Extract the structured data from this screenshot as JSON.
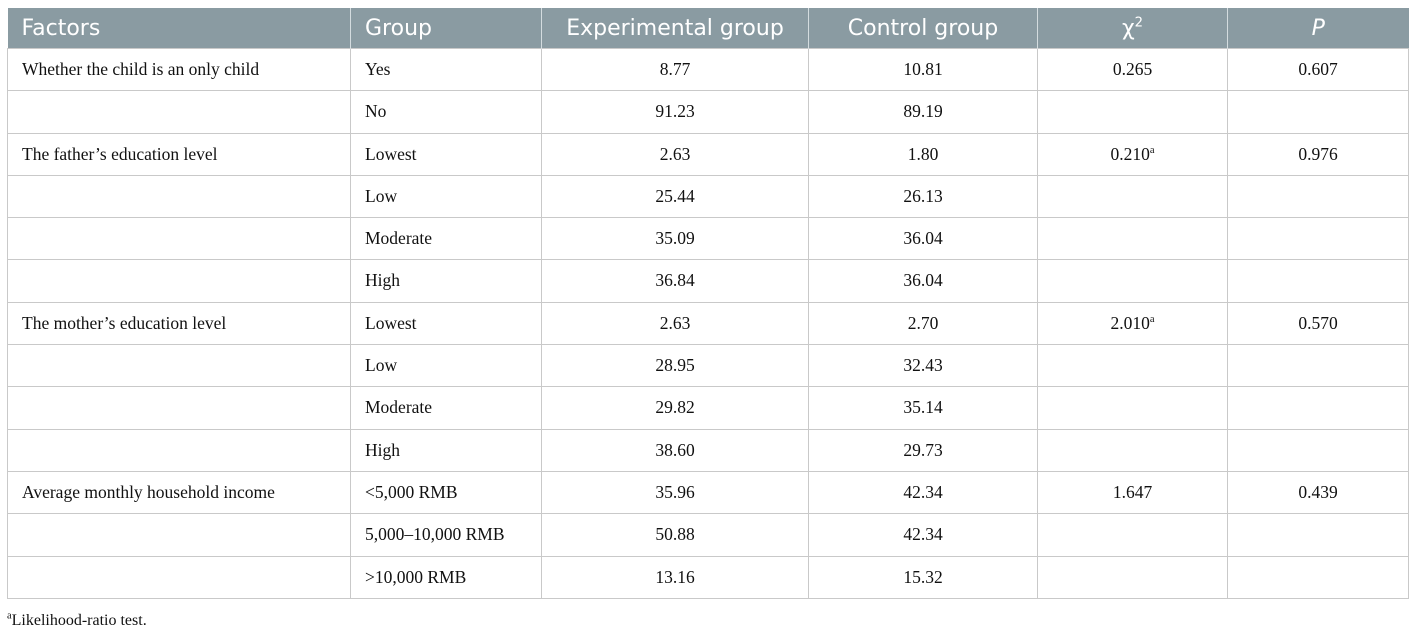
{
  "table": {
    "headers": {
      "factors": "Factors",
      "group": "Group",
      "experimental": "Experimental group",
      "control": "Control group",
      "chi_base": "χ",
      "chi_sup": "2",
      "p": "P"
    },
    "rows": [
      {
        "factor": "Whether the child is an only child",
        "group": "Yes",
        "exp": "8.77",
        "ctrl": "10.81",
        "chi": "0.265",
        "chi_sup": "",
        "p": "0.607"
      },
      {
        "factor": "",
        "group": "No",
        "exp": "91.23",
        "ctrl": "89.19",
        "chi": "",
        "chi_sup": "",
        "p": ""
      },
      {
        "factor": "The father’s education level",
        "group": "Lowest",
        "exp": "2.63",
        "ctrl": "1.80",
        "chi": "0.210",
        "chi_sup": "a",
        "p": "0.976"
      },
      {
        "factor": "",
        "group": "Low",
        "exp": "25.44",
        "ctrl": "26.13",
        "chi": "",
        "chi_sup": "",
        "p": ""
      },
      {
        "factor": "",
        "group": "Moderate",
        "exp": "35.09",
        "ctrl": "36.04",
        "chi": "",
        "chi_sup": "",
        "p": ""
      },
      {
        "factor": "",
        "group": "High",
        "exp": "36.84",
        "ctrl": "36.04",
        "chi": "",
        "chi_sup": "",
        "p": ""
      },
      {
        "factor": "The mother’s education level",
        "group": "Lowest",
        "exp": "2.63",
        "ctrl": "2.70",
        "chi": "2.010",
        "chi_sup": "a",
        "p": "0.570"
      },
      {
        "factor": "",
        "group": "Low",
        "exp": "28.95",
        "ctrl": "32.43",
        "chi": "",
        "chi_sup": "",
        "p": ""
      },
      {
        "factor": "",
        "group": "Moderate",
        "exp": "29.82",
        "ctrl": "35.14",
        "chi": "",
        "chi_sup": "",
        "p": ""
      },
      {
        "factor": "",
        "group": "High",
        "exp": "38.60",
        "ctrl": "29.73",
        "chi": "",
        "chi_sup": "",
        "p": ""
      },
      {
        "factor": "Average monthly household income",
        "group": "<5,000 RMB",
        "exp": "35.96",
        "ctrl": "42.34",
        "chi": "1.647",
        "chi_sup": "",
        "p": "0.439"
      },
      {
        "factor": "",
        "group": "5,000–10,000 RMB",
        "exp": "50.88",
        "ctrl": "42.34",
        "chi": "",
        "chi_sup": "",
        "p": ""
      },
      {
        "factor": "",
        "group": ">10,000 RMB",
        "exp": "13.16",
        "ctrl": "15.32",
        "chi": "",
        "chi_sup": "",
        "p": ""
      }
    ]
  },
  "footnote": {
    "marker": "a",
    "text": "Likelihood-ratio test."
  },
  "colors": {
    "header_bg": "#8a9ba2",
    "header_text": "#ffffff",
    "border": "#c9c9c9"
  }
}
